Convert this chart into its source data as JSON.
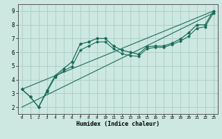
{
  "x_range": [
    -0.5,
    23.5
  ],
  "y_range": [
    1.5,
    9.5
  ],
  "background_color": "#cce8e0",
  "grid_color": "#aaccc4",
  "line_color": "#1a6b5a",
  "xlabel": "Humidex (Indice chaleur)",
  "yticks": [
    2,
    3,
    4,
    5,
    6,
    7,
    8,
    9
  ],
  "xticks": [
    0,
    1,
    2,
    3,
    4,
    5,
    6,
    7,
    8,
    9,
    10,
    11,
    12,
    13,
    14,
    15,
    16,
    17,
    18,
    19,
    20,
    21,
    22,
    23
  ],
  "curve1_x": [
    0,
    1,
    2,
    3,
    4,
    5,
    6,
    7,
    8,
    9,
    10,
    11,
    12,
    13,
    14,
    15,
    16,
    17,
    18,
    19,
    20,
    21,
    22,
    23
  ],
  "curve1_y": [
    3.3,
    2.75,
    2.0,
    3.2,
    4.3,
    4.8,
    5.3,
    6.6,
    6.75,
    7.0,
    7.0,
    6.45,
    6.15,
    6.0,
    5.85,
    6.4,
    6.45,
    6.45,
    6.65,
    6.95,
    7.4,
    8.0,
    8.0,
    9.0
  ],
  "curve2_x": [
    0,
    1,
    2,
    3,
    4,
    5,
    6,
    7,
    8,
    9,
    10,
    11,
    12,
    13,
    14,
    15,
    16,
    17,
    18,
    19,
    20,
    21,
    22,
    23
  ],
  "curve2_y": [
    3.3,
    2.75,
    2.0,
    3.1,
    4.2,
    4.65,
    4.95,
    6.15,
    6.45,
    6.75,
    6.75,
    6.25,
    5.9,
    5.75,
    5.7,
    6.25,
    6.35,
    6.35,
    6.55,
    6.8,
    7.15,
    7.75,
    7.85,
    8.85
  ],
  "line1_x": [
    0,
    23
  ],
  "line1_y": [
    3.3,
    9.0
  ],
  "line2_x": [
    0,
    23
  ],
  "line2_y": [
    2.0,
    8.85
  ]
}
